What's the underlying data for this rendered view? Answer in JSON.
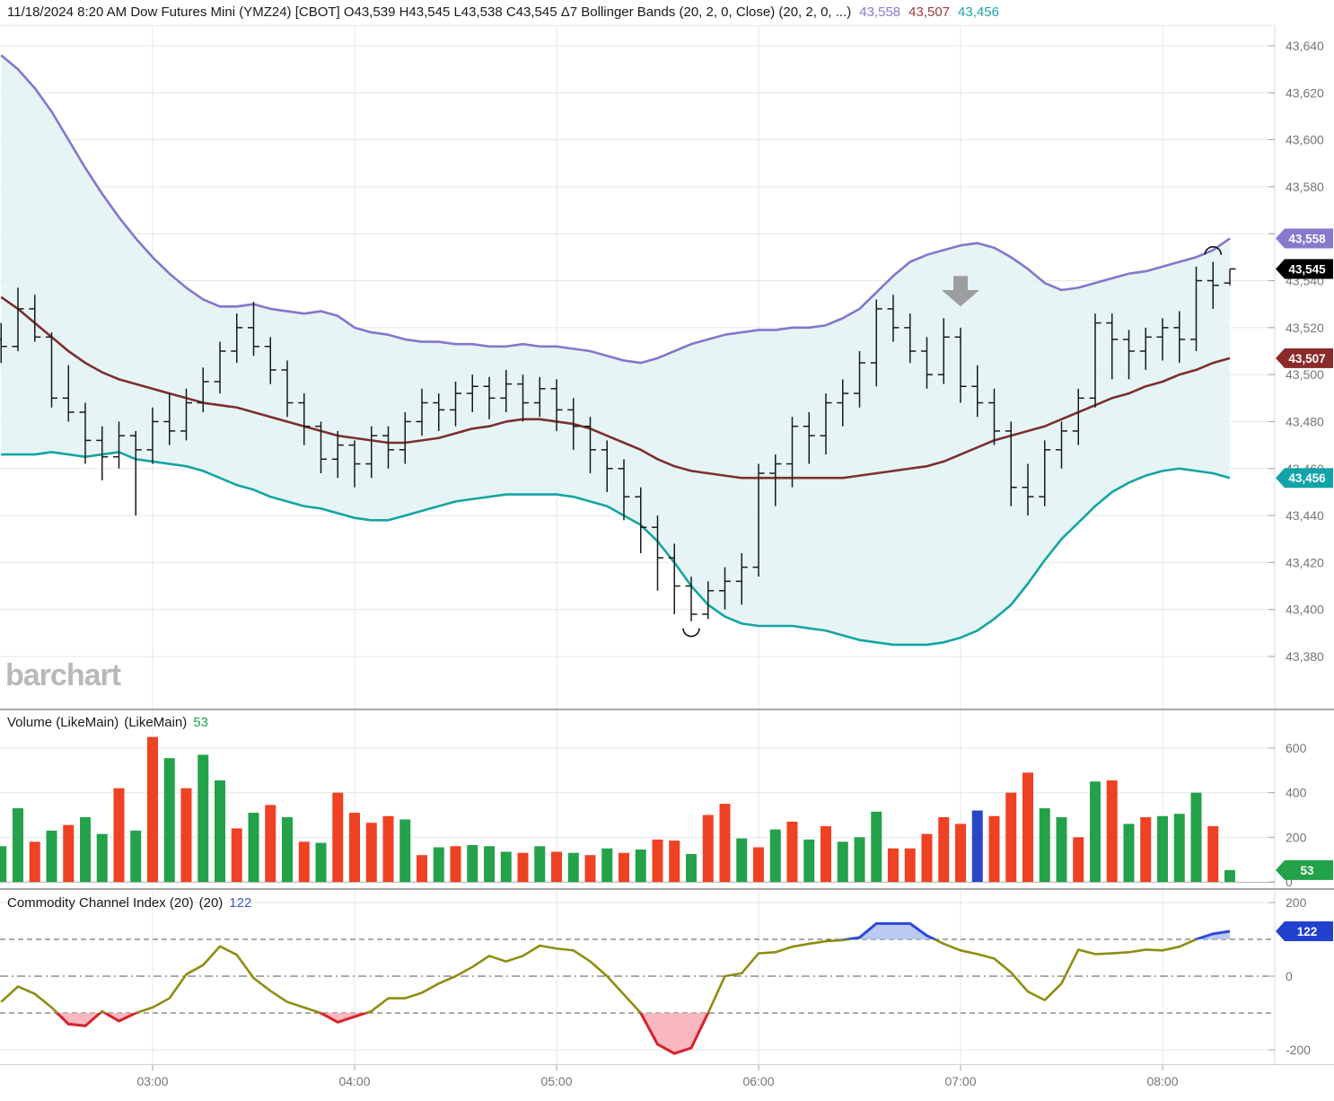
{
  "header": {
    "info_text": "11/18/2024 8:20 AM  Dow Futures Mini (YMZ24) [CBOT]  O43,539 H43,545 L43,538 C43,545 Δ7  Bollinger Bands (20, 2, 0, Close)  (20, 2, 0, ...)",
    "values": [
      {
        "text": "43,558",
        "color": "#8878CE"
      },
      {
        "text": "43,507",
        "color": "#9A3B3B"
      },
      {
        "text": "43,456",
        "color": "#1FA5A5"
      }
    ]
  },
  "watermark_text": "barchart",
  "volume_panel": {
    "title": "Volume (LikeMain)",
    "title2": "(LikeMain)",
    "value": "53",
    "value_color": "#23A24A"
  },
  "cci_panel": {
    "title": "Commodity Channel Index (20)",
    "title2": "(20)",
    "value": "122",
    "value_color": "#4059D0"
  },
  "chart_data": {
    "type": "ohlc",
    "title": "Dow Futures Mini (YMZ24) [CBOT] 5-minute bars with Bollinger Bands, Volume, CCI",
    "x_labels": [
      "03:00",
      "04:00",
      "05:00",
      "06:00",
      "07:00",
      "08:00"
    ],
    "x_label_bar_indices": [
      9,
      21,
      33,
      45,
      57,
      69
    ],
    "price_axis": {
      "min": 43380,
      "max": 43640,
      "tick_step": 20
    },
    "volume_axis": {
      "ticks": [
        600,
        400,
        200,
        0
      ]
    },
    "cci_axis": {
      "ticks": [
        200,
        0,
        -200
      ],
      "dashed_levels": [
        100,
        -100
      ],
      "zero_level": 0
    },
    "grid": true,
    "ohlc": [
      [
        43515,
        43522,
        43505,
        43512
      ],
      [
        43512,
        43537,
        43510,
        43528
      ],
      [
        43528,
        43534,
        43514,
        43516
      ],
      [
        43516,
        43518,
        43486,
        43490
      ],
      [
        43490,
        43504,
        43480,
        43484
      ],
      [
        43484,
        43488,
        43462,
        43472
      ],
      [
        43472,
        43478,
        43455,
        43465
      ],
      [
        43465,
        43480,
        43460,
        43474
      ],
      [
        43474,
        43476,
        43440,
        43468
      ],
      [
        43468,
        43486,
        43462,
        43480
      ],
      [
        43480,
        43492,
        43470,
        43476
      ],
      [
        43476,
        43494,
        43472,
        43488
      ],
      [
        43488,
        43503,
        43484,
        43497
      ],
      [
        43497,
        43514,
        43492,
        43510
      ],
      [
        43510,
        43526,
        43505,
        43520
      ],
      [
        43520,
        43531,
        43508,
        43512
      ],
      [
        43512,
        43516,
        43496,
        43502
      ],
      [
        43502,
        43506,
        43482,
        43488
      ],
      [
        43488,
        43492,
        43470,
        43478
      ],
      [
        43478,
        43480,
        43458,
        43464
      ],
      [
        43464,
        43476,
        43456,
        43470
      ],
      [
        43470,
        43472,
        43452,
        43462
      ],
      [
        43462,
        43478,
        43456,
        43474
      ],
      [
        43474,
        43478,
        43460,
        43468
      ],
      [
        43468,
        43484,
        43462,
        43480
      ],
      [
        43480,
        43494,
        43474,
        43488
      ],
      [
        43488,
        43492,
        43476,
        43485
      ],
      [
        43485,
        43497,
        43478,
        43492
      ],
      [
        43492,
        43500,
        43484,
        43495
      ],
      [
        43495,
        43499,
        43481,
        43490
      ],
      [
        43490,
        43502,
        43484,
        43496
      ],
      [
        43496,
        43500,
        43480,
        43488
      ],
      [
        43488,
        43499,
        43482,
        43494
      ],
      [
        43494,
        43498,
        43476,
        43485
      ],
      [
        43485,
        43490,
        43468,
        43478
      ],
      [
        43478,
        43482,
        43458,
        43468
      ],
      [
        43468,
        43472,
        43450,
        43460
      ],
      [
        43460,
        43464,
        43438,
        43448
      ],
      [
        43448,
        43452,
        43424,
        43435
      ],
      [
        43435,
        43440,
        43408,
        43422
      ],
      [
        43422,
        43428,
        43398,
        43410
      ],
      [
        43410,
        43414,
        43395,
        43398
      ],
      [
        43398,
        43412,
        43396,
        43408
      ],
      [
        43408,
        43418,
        43400,
        43412
      ],
      [
        43412,
        43424,
        43402,
        43418
      ],
      [
        43418,
        43462,
        43414,
        43458
      ],
      [
        43458,
        43466,
        43444,
        43462
      ],
      [
        43462,
        43482,
        43452,
        43478
      ],
      [
        43478,
        43484,
        43462,
        43474
      ],
      [
        43474,
        43492,
        43466,
        43488
      ],
      [
        43488,
        43498,
        43478,
        43492
      ],
      [
        43492,
        43510,
        43486,
        43505
      ],
      [
        43505,
        43532,
        43495,
        43528
      ],
      [
        43528,
        43534,
        43514,
        43520
      ],
      [
        43520,
        43526,
        43505,
        43510
      ],
      [
        43510,
        43516,
        43494,
        43500
      ],
      [
        43500,
        43524,
        43496,
        43516
      ],
      [
        43516,
        43520,
        43488,
        43495
      ],
      [
        43495,
        43504,
        43482,
        43488
      ],
      [
        43488,
        43494,
        43470,
        43476
      ],
      [
        43476,
        43480,
        43444,
        43452
      ],
      [
        43452,
        43462,
        43440,
        43448
      ],
      [
        43448,
        43472,
        43444,
        43468
      ],
      [
        43468,
        43480,
        43460,
        43476
      ],
      [
        43476,
        43494,
        43470,
        43490
      ],
      [
        43490,
        43526,
        43486,
        43522
      ],
      [
        43522,
        43526,
        43498,
        43515
      ],
      [
        43515,
        43519,
        43498,
        43510
      ],
      [
        43510,
        43520,
        43502,
        43516
      ],
      [
        43516,
        43524,
        43506,
        43520
      ],
      [
        43520,
        43527,
        43505,
        43515
      ],
      [
        43515,
        43546,
        43510,
        43540
      ],
      [
        43540,
        43548,
        43528,
        43538
      ],
      [
        43539,
        43545,
        43538,
        43545
      ]
    ],
    "bollinger_upper": [
      43636,
      43630,
      43622,
      43612,
      43600,
      43588,
      43577,
      43567,
      43558,
      43550,
      43543,
      43537,
      43532,
      43529,
      43529,
      43530,
      43528,
      43527,
      43526,
      43527,
      43525,
      43520,
      43518,
      43517,
      43515,
      43514,
      43514,
      43513,
      43513,
      43512,
      43512,
      43513,
      43512,
      43512,
      43511,
      43510,
      43508,
      43506,
      43505,
      43507,
      43510,
      43513,
      43515,
      43517,
      43518,
      43519,
      43519,
      43520,
      43520,
      43521,
      43524,
      43528,
      43535,
      43542,
      43548,
      43551,
      43553,
      43555,
      43556,
      43554,
      43550,
      43545,
      43539,
      43536,
      43537,
      43539,
      43541,
      43543,
      43544,
      43546,
      43548,
      43550,
      43553,
      43558
    ],
    "bollinger_middle": [
      43533,
      43528,
      43522,
      43516,
      43510,
      43505,
      43501,
      43498,
      43496,
      43494,
      43492,
      43490,
      43488,
      43487,
      43486,
      43484,
      43482,
      43480,
      43478,
      43476,
      43474,
      43473,
      43472,
      43471,
      43471,
      43472,
      43473,
      43475,
      43477,
      43478,
      43480,
      43481,
      43481,
      43480,
      43479,
      43477,
      43474,
      43471,
      43468,
      43464,
      43461,
      43459,
      43458,
      43457,
      43456,
      43456,
      43456,
      43456,
      43456,
      43456,
      43456,
      43457,
      43458,
      43459,
      43460,
      43461,
      43463,
      43466,
      43469,
      43472,
      43474,
      43476,
      43478,
      43481,
      43484,
      43487,
      43490,
      43492,
      43495,
      43497,
      43500,
      43502,
      43505,
      43507
    ],
    "bollinger_lower": [
      43466,
      43466,
      43466,
      43467,
      43466,
      43465,
      43466,
      43467,
      43464,
      43463,
      43462,
      43461,
      43459,
      43456,
      43453,
      43451,
      43448,
      43446,
      43444,
      43443,
      43441,
      43439,
      43438,
      43438,
      43440,
      43442,
      43444,
      43446,
      43447,
      43448,
      43449,
      43449,
      43449,
      43449,
      43448,
      43446,
      43444,
      43440,
      43436,
      43429,
      43420,
      43410,
      43402,
      43397,
      43394,
      43393,
      43393,
      43393,
      43392,
      43391,
      43389,
      43387,
      43386,
      43385,
      43385,
      43385,
      43386,
      43388,
      43391,
      43396,
      43402,
      43411,
      43421,
      43430,
      43437,
      43444,
      43450,
      43454,
      43457,
      43459,
      43460,
      43459,
      43458,
      43456
    ],
    "volume": [
      160,
      330,
      180,
      230,
      255,
      290,
      215,
      420,
      230,
      650,
      555,
      420,
      570,
      455,
      240,
      310,
      345,
      290,
      180,
      175,
      400,
      310,
      265,
      295,
      280,
      120,
      155,
      160,
      165,
      160,
      135,
      130,
      160,
      135,
      130,
      120,
      150,
      130,
      145,
      190,
      185,
      125,
      300,
      350,
      195,
      155,
      235,
      270,
      190,
      250,
      180,
      200,
      315,
      150,
      150,
      215,
      290,
      260,
      320,
      295,
      400,
      490,
      330,
      290,
      200,
      450,
      455,
      260,
      290,
      295,
      305,
      400,
      250,
      53
    ],
    "volume_colors": [
      "g",
      "g",
      "r",
      "g",
      "r",
      "g",
      "g",
      "r",
      "g",
      "r",
      "g",
      "r",
      "g",
      "g",
      "r",
      "g",
      "r",
      "g",
      "r",
      "g",
      "r",
      "r",
      "r",
      "r",
      "g",
      "r",
      "g",
      "r",
      "g",
      "g",
      "g",
      "r",
      "g",
      "r",
      "g",
      "r",
      "g",
      "r",
      "g",
      "r",
      "r",
      "g",
      "r",
      "r",
      "g",
      "r",
      "g",
      "r",
      "g",
      "r",
      "g",
      "g",
      "g",
      "r",
      "r",
      "r",
      "r",
      "r",
      "b",
      "r",
      "r",
      "r",
      "g",
      "g",
      "r",
      "g",
      "r",
      "g",
      "r",
      "g",
      "g",
      "g",
      "r",
      "g"
    ],
    "cci": [
      -70,
      -28,
      -48,
      -85,
      -130,
      -135,
      -95,
      -122,
      -100,
      -85,
      -60,
      5,
      30,
      81,
      58,
      -5,
      -40,
      -70,
      -85,
      -100,
      -125,
      -110,
      -95,
      -60,
      -60,
      -45,
      -20,
      0,
      25,
      55,
      40,
      55,
      83,
      75,
      70,
      40,
      0,
      -50,
      -100,
      -185,
      -210,
      -195,
      -100,
      0,
      8,
      62,
      65,
      80,
      88,
      95,
      98,
      105,
      143,
      143,
      143,
      110,
      88,
      70,
      60,
      48,
      10,
      -42,
      -65,
      -20,
      72,
      60,
      62,
      65,
      72,
      70,
      80,
      100,
      115,
      122
    ],
    "last_values": {
      "bollinger_upper": 43558,
      "close": 43545,
      "bollinger_middle": 43507,
      "bollinger_lower": 43456,
      "volume": 53,
      "cci": 122
    },
    "badges": {
      "price": [
        {
          "value": 43558,
          "label": "43,558",
          "color": "#8878CE"
        },
        {
          "value": 43545,
          "label": "43,545",
          "color": "#000000"
        },
        {
          "value": 43507,
          "label": "43,507",
          "color": "#8C2A2A"
        },
        {
          "value": 43456,
          "label": "43,456",
          "color": "#12A3A8"
        }
      ],
      "volume": {
        "value": 53,
        "label": "53",
        "color": "#23A24A"
      },
      "cci": {
        "value": 122,
        "label": "122",
        "color": "#2140CE"
      }
    },
    "annotations": [
      {
        "type": "down-arrow",
        "name": "gray-down-arrow",
        "bar_index": 57,
        "price_top": 43542,
        "price_head": 43536,
        "price_tip": 43529,
        "color": "#9E9E9E"
      },
      {
        "type": "arc-under",
        "name": "arc-under-low",
        "bar_index": 41,
        "price": 43392,
        "color": "#111111"
      },
      {
        "type": "arc-over",
        "name": "arc-over-high",
        "bar_index": 72,
        "price": 43551,
        "color": "#111111"
      }
    ],
    "colors": {
      "upper_band": "#8277CC",
      "middle_band": "#7C2F2F",
      "lower_band": "#14A5A3",
      "band_fill": "#E2F2F3",
      "bar": "#1A1A1A",
      "volume_up": "#23A24A",
      "volume_down": "#EF4123",
      "volume_special": "#2847C4",
      "cci_line": "#8F8D12",
      "cci_over_fill": "#ACBCEF",
      "cci_over_line": "#2C4BD8",
      "cci_under_fill": "#F8ACB4",
      "cci_under_line": "#D8222E",
      "grid": "#E7E7E7",
      "axis_text": "#757575",
      "badge_text": "#FFFFFF",
      "tick": "#A0A0A0"
    }
  }
}
